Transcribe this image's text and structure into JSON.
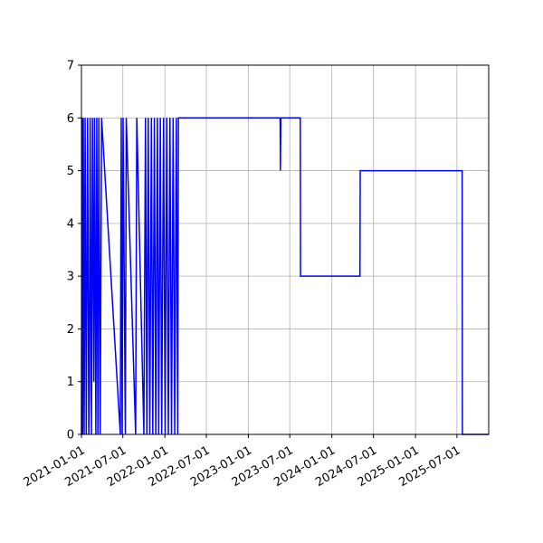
{
  "chart_data": {
    "type": "line",
    "x": [
      "2021-01-01",
      "2021-01-03",
      "2021-01-06",
      "2021-01-09",
      "2021-01-13",
      "2021-01-17",
      "2021-01-22",
      "2021-01-28",
      "2021-02-02",
      "2021-02-05",
      "2021-02-08",
      "2021-02-14",
      "2021-02-18",
      "2021-02-24",
      "2021-02-27",
      "2021-03-05",
      "2021-03-09",
      "2021-03-14",
      "2021-03-18",
      "2021-03-24",
      "2021-03-30",
      "2021-06-20",
      "2021-06-24",
      "2021-06-28",
      "2021-07-02",
      "2021-07-12",
      "2021-07-16",
      "2021-08-26",
      "2021-08-31",
      "2021-10-01",
      "2021-10-08",
      "2021-10-14",
      "2021-10-20",
      "2021-10-27",
      "2021-11-03",
      "2021-11-09",
      "2021-11-16",
      "2021-11-22",
      "2021-11-29",
      "2021-12-05",
      "2021-12-12",
      "2021-12-18",
      "2021-12-26",
      "2022-01-02",
      "2022-01-09",
      "2022-01-16",
      "2022-01-23",
      "2022-01-30",
      "2022-02-06",
      "2022-02-13",
      "2022-02-20",
      "2022-02-26",
      "2022-03-01",
      "2023-05-20",
      "2023-05-21",
      "2023-05-23",
      "2023-08-16",
      "2023-08-17",
      "2024-05-03",
      "2024-05-04",
      "2025-07-24",
      "2025-07-25",
      "2025-11-17"
    ],
    "series": [
      {
        "color": "#0000ff",
        "values": [
          0,
          6,
          0,
          6,
          0,
          6,
          0,
          6,
          0,
          1,
          6,
          0,
          6,
          1,
          6,
          0,
          6,
          0,
          6,
          0,
          6,
          0,
          6,
          0,
          6,
          0,
          6,
          0,
          6,
          0,
          6,
          0,
          6,
          0,
          6,
          0,
          6,
          0,
          6,
          0,
          6,
          0,
          6,
          0,
          6,
          0,
          6,
          0,
          6,
          0,
          6,
          0,
          6,
          6,
          5,
          6,
          6,
          3,
          3,
          5,
          5,
          0,
          0
        ]
      }
    ],
    "xlim": [
      "2021-01-01",
      "2025-11-17"
    ],
    "xticks": [
      "2021-01-01",
      "2021-07-01",
      "2022-01-01",
      "2022-07-01",
      "2023-01-01",
      "2023-07-01",
      "2024-01-01",
      "2024-07-01",
      "2025-01-01",
      "2025-07-01"
    ],
    "ylim": [
      0,
      7
    ],
    "yticks": [
      0,
      1,
      2,
      3,
      4,
      5,
      6,
      7
    ],
    "grid": true
  }
}
